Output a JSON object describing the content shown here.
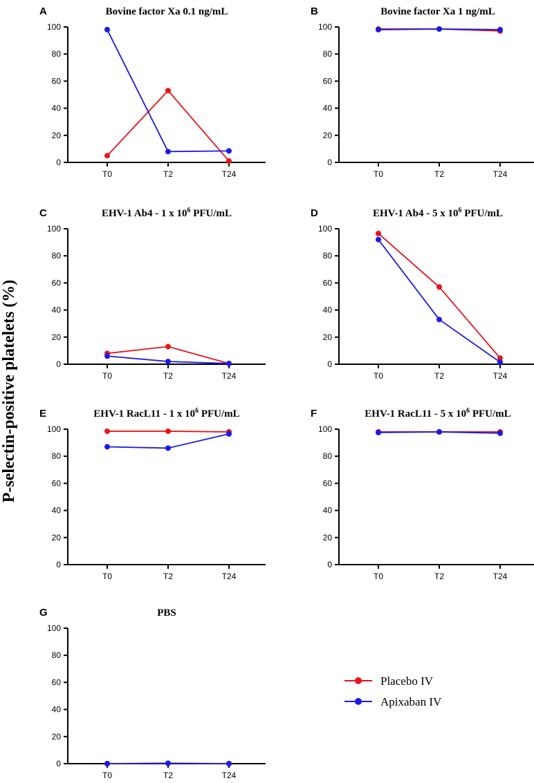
{
  "figure": {
    "ylabel": "P-selectin-positive platelets (%)",
    "series_colors": {
      "placebo": "#e8141a",
      "apixaban": "#1a1ae8"
    },
    "legend": [
      {
        "key": "placebo",
        "label": "Placebo IV"
      },
      {
        "key": "apixaban",
        "label": "Apixaban IV"
      }
    ]
  },
  "chart_data": [
    {
      "type": "line",
      "letter": "A",
      "title": {
        "main": "Bovine factor Xa 0.1 ng/mL",
        "sup": "",
        "tail": ""
      },
      "categories": [
        "T0",
        "T2",
        "T24"
      ],
      "ylim": [
        0,
        100
      ],
      "yticks": [
        0,
        20,
        40,
        60,
        80,
        100
      ],
      "series": [
        {
          "name": "Placebo IV",
          "key": "placebo",
          "values": [
            5,
            53,
            1
          ]
        },
        {
          "name": "Apixaban IV",
          "key": "apixaban",
          "values": [
            98,
            8,
            8.5
          ]
        }
      ]
    },
    {
      "type": "line",
      "letter": "B",
      "title": {
        "main": "Bovine factor Xa 1 ng/mL",
        "sup": "",
        "tail": ""
      },
      "categories": [
        "T0",
        "T2",
        "T24"
      ],
      "ylim": [
        0,
        100
      ],
      "yticks": [
        0,
        20,
        40,
        60,
        80,
        100
      ],
      "series": [
        {
          "name": "Placebo IV",
          "key": "placebo",
          "values": [
            98.5,
            98.5,
            97
          ]
        },
        {
          "name": "Apixaban IV",
          "key": "apixaban",
          "values": [
            98,
            98.5,
            98
          ]
        }
      ]
    },
    {
      "type": "line",
      "letter": "C",
      "title": {
        "main": "EHV-1 Ab4 - 1 x 10",
        "sup": "6",
        "tail": " PFU/mL"
      },
      "categories": [
        "T0",
        "T2",
        "T24"
      ],
      "ylim": [
        0,
        100
      ],
      "yticks": [
        0,
        20,
        40,
        60,
        80,
        100
      ],
      "series": [
        {
          "name": "Placebo IV",
          "key": "placebo",
          "values": [
            8,
            13,
            0.5
          ]
        },
        {
          "name": "Apixaban IV",
          "key": "apixaban",
          "values": [
            6,
            2,
            0.5
          ]
        }
      ]
    },
    {
      "type": "line",
      "letter": "D",
      "title": {
        "main": "EHV-1 Ab4 - 5 x 10",
        "sup": "6",
        "tail": " PFU/mL"
      },
      "categories": [
        "T0",
        "T2",
        "T24"
      ],
      "ylim": [
        0,
        100
      ],
      "yticks": [
        0,
        20,
        40,
        60,
        80,
        100
      ],
      "series": [
        {
          "name": "Placebo IV",
          "key": "placebo",
          "values": [
            96.5,
            57,
            4.5
          ]
        },
        {
          "name": "Apixaban IV",
          "key": "apixaban",
          "values": [
            92,
            33,
            1.5
          ]
        }
      ]
    },
    {
      "type": "line",
      "letter": "E",
      "title": {
        "main": "EHV-1 RacL11 - 1 x 10",
        "sup": "6",
        "tail": " PFU/mL"
      },
      "categories": [
        "T0",
        "T2",
        "T24"
      ],
      "ylim": [
        0,
        100
      ],
      "yticks": [
        0,
        20,
        40,
        60,
        80,
        100
      ],
      "series": [
        {
          "name": "Placebo IV",
          "key": "placebo",
          "values": [
            98.5,
            98.5,
            98
          ]
        },
        {
          "name": "Apixaban IV",
          "key": "apixaban",
          "values": [
            87,
            86,
            96.5
          ]
        }
      ]
    },
    {
      "type": "line",
      "letter": "F",
      "title": {
        "main": "EHV-1 RacL11 - 5 x 10",
        "sup": "6",
        "tail": " PFU/mL"
      },
      "categories": [
        "T0",
        "T2",
        "T24"
      ],
      "ylim": [
        0,
        100
      ],
      "yticks": [
        0,
        20,
        40,
        60,
        80,
        100
      ],
      "series": [
        {
          "name": "Placebo IV",
          "key": "placebo",
          "values": [
            98,
            98,
            98
          ]
        },
        {
          "name": "Apixaban IV",
          "key": "apixaban",
          "values": [
            97.5,
            98,
            97
          ]
        }
      ]
    },
    {
      "type": "line",
      "letter": "G",
      "title": {
        "main": "PBS",
        "sup": "",
        "tail": ""
      },
      "categories": [
        "T0",
        "T2",
        "T24"
      ],
      "ylim": [
        0,
        100
      ],
      "yticks": [
        0,
        20,
        40,
        60,
        80,
        100
      ],
      "series": [
        {
          "name": "Placebo IV",
          "key": "placebo",
          "values": [
            0,
            0.2,
            0
          ]
        },
        {
          "name": "Apixaban IV",
          "key": "apixaban",
          "values": [
            0,
            0.3,
            0
          ]
        }
      ]
    }
  ]
}
